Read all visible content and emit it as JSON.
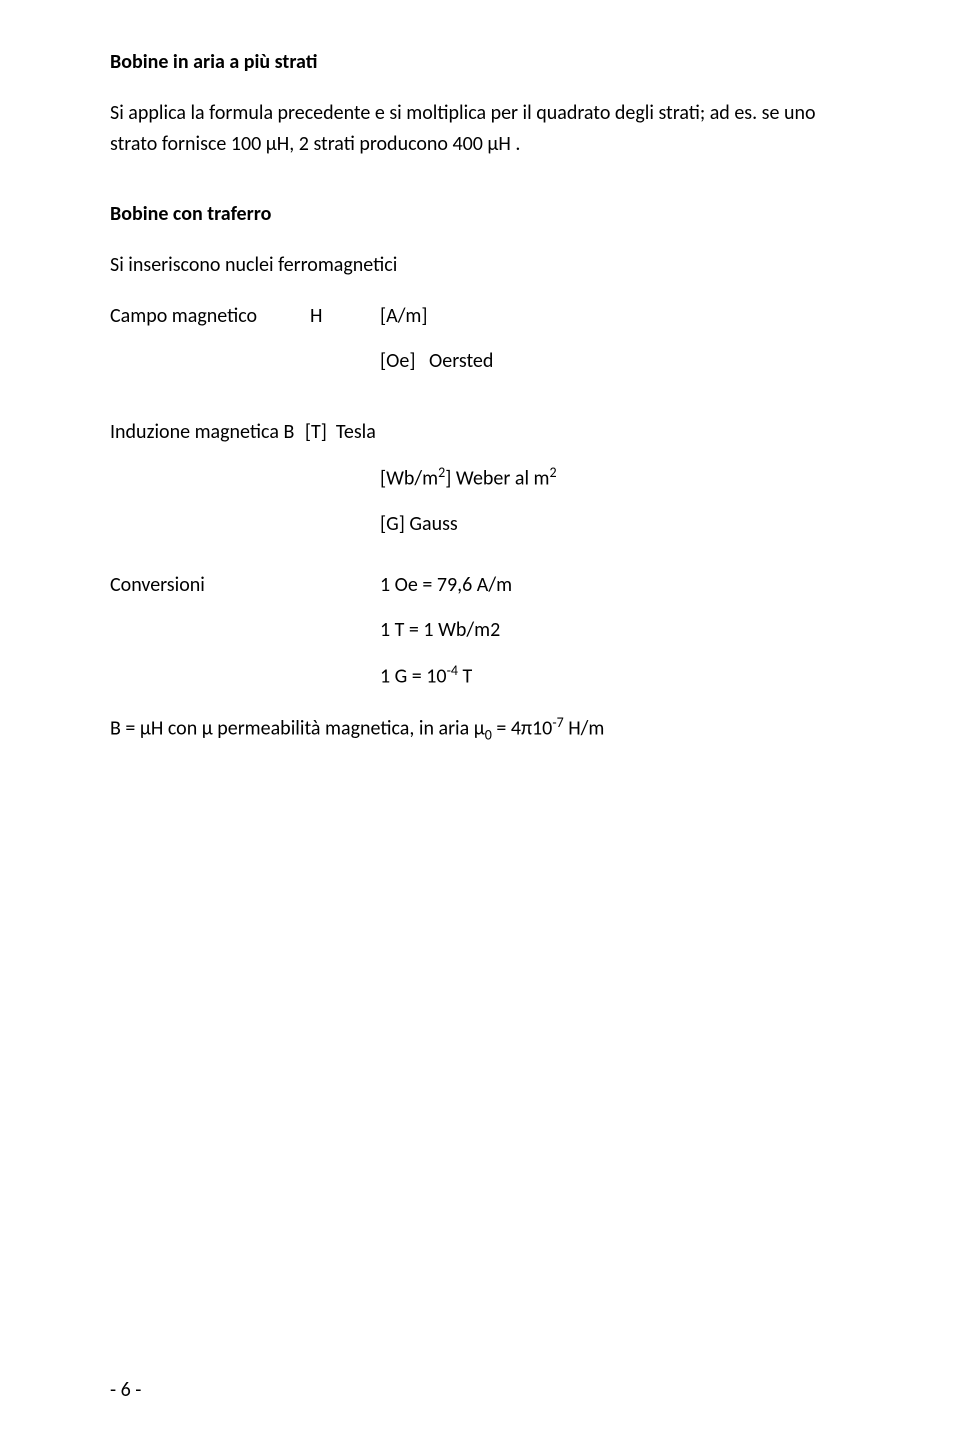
{
  "title1": "Bobine in aria a più strati",
  "para1": "Si applica la formula precedente e si moltiplica per il quadrato degli strati; ad es. se uno strato fornisce 100 μH, 2 strati producono 400 μH .",
  "title2": "Bobine con traferro",
  "line_nuclei": "Si inseriscono nuclei ferromagnetici",
  "campo_label": "Campo magnetico",
  "campo_sym": "H",
  "campo_unit1": "[A/m]",
  "campo_unit2": "[Oe]   Oersted",
  "ind_label": "Induzione magnetica B",
  "ind_unit1": "[T]  Tesla",
  "ind_unit2_html": "[Wb/m<sup>2</sup>]  Weber al m<sup>2</sup>",
  "ind_unit3": "[G]  Gauss",
  "conv_label": "Conversioni",
  "conv1": "1 Oe = 79,6 A/m",
  "conv2": "1 T = 1 Wb/m2",
  "conv3_html": "1 G = 10<sup>-4</sup> T",
  "final_html": "B = μH   con μ permeabilità magnetica, in aria μ<sub>0</sub> = 4π10<sup>-7</sup> H/m",
  "page_number": "- 6 -"
}
